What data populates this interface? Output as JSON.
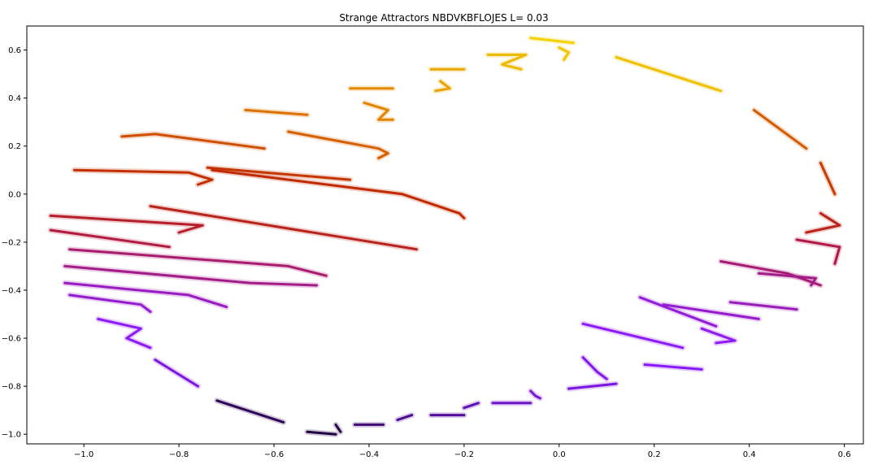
{
  "chart_data": {
    "type": "scatter",
    "title": "Strange Attractors     NBDVKBFLOJES    L= 0.03",
    "xlabel": "",
    "ylabel": "",
    "xlim": [
      -1.12,
      0.64
    ],
    "ylim": [
      -1.04,
      0.7
    ],
    "xticks": [
      -1.0,
      -0.8,
      -0.6,
      -0.4,
      -0.2,
      0.0,
      0.2,
      0.4,
      0.6
    ],
    "xtick_labels": [
      "−1.0",
      "−0.8",
      "−0.6",
      "−0.4",
      "−0.2",
      "0.0",
      "0.2",
      "0.4",
      "0.6"
    ],
    "yticks": [
      0.6,
      0.4,
      0.2,
      0.0,
      -0.2,
      -0.4,
      -0.6,
      -0.8,
      -1.0
    ],
    "ytick_labels": [
      "0.6",
      "0.4",
      "0.2",
      "0.0",
      "−0.2",
      "−0.4",
      "−0.6",
      "−0.8",
      "−1.0"
    ],
    "grid": false,
    "colormap": "gnuplot",
    "colors": {
      "low": "#1a0033",
      "mid_purple": "#8c1aff",
      "magenta": "#b0185a",
      "red": "#c02a00",
      "orange": "#e07800",
      "yellow": "#f2d000"
    },
    "strokes": [
      {
        "x": [
          -0.06,
          0.03
        ],
        "y": [
          0.65,
          0.63
        ],
        "c": 1.0
      },
      {
        "x": [
          0.0,
          0.02,
          0.01
        ],
        "y": [
          0.61,
          0.59,
          0.56
        ],
        "c": 0.98
      },
      {
        "x": [
          -0.15,
          -0.07,
          -0.12,
          -0.08
        ],
        "y": [
          0.58,
          0.58,
          0.54,
          0.52
        ],
        "c": 0.96
      },
      {
        "x": [
          -0.27,
          -0.2
        ],
        "y": [
          0.52,
          0.52
        ],
        "c": 0.93
      },
      {
        "x": [
          -0.25,
          -0.23,
          -0.26
        ],
        "y": [
          0.47,
          0.44,
          0.43
        ],
        "c": 0.92
      },
      {
        "x": [
          0.12,
          0.34
        ],
        "y": [
          0.57,
          0.43
        ],
        "c": 0.97
      },
      {
        "x": [
          -0.44,
          -0.35
        ],
        "y": [
          0.44,
          0.44
        ],
        "c": 0.88
      },
      {
        "x": [
          -0.41,
          -0.36,
          -0.38,
          -0.35
        ],
        "y": [
          0.38,
          0.35,
          0.31,
          0.31
        ],
        "c": 0.87
      },
      {
        "x": [
          -0.66,
          -0.53
        ],
        "y": [
          0.35,
          0.33
        ],
        "c": 0.84
      },
      {
        "x": [
          -0.57,
          -0.38,
          -0.36,
          -0.38
        ],
        "y": [
          0.26,
          0.19,
          0.17,
          0.15
        ],
        "c": 0.81
      },
      {
        "x": [
          -0.92,
          -0.85,
          -0.62
        ],
        "y": [
          0.24,
          0.25,
          0.19
        ],
        "c": 0.78
      },
      {
        "x": [
          0.41,
          0.52
        ],
        "y": [
          0.35,
          0.19
        ],
        "c": 0.8
      },
      {
        "x": [
          -1.02,
          -0.78,
          -0.73,
          -0.76
        ],
        "y": [
          0.1,
          0.09,
          0.06,
          0.04
        ],
        "c": 0.73
      },
      {
        "x": [
          -0.74,
          -0.44
        ],
        "y": [
          0.11,
          0.06
        ],
        "c": 0.74
      },
      {
        "x": [
          -0.73,
          -0.33,
          -0.21,
          -0.2
        ],
        "y": [
          0.1,
          0.0,
          -0.08,
          -0.1
        ],
        "c": 0.72
      },
      {
        "x": [
          0.55,
          0.58
        ],
        "y": [
          0.13,
          0.0
        ],
        "c": 0.75
      },
      {
        "x": [
          -1.07,
          -0.75,
          -0.8
        ],
        "y": [
          -0.09,
          -0.13,
          -0.16
        ],
        "c": 0.66
      },
      {
        "x": [
          -0.86,
          -0.3
        ],
        "y": [
          -0.05,
          -0.23
        ],
        "c": 0.68
      },
      {
        "x": [
          -1.07,
          -0.82
        ],
        "y": [
          -0.15,
          -0.22
        ],
        "c": 0.63
      },
      {
        "x": [
          0.55,
          0.59,
          0.52
        ],
        "y": [
          -0.08,
          -0.13,
          -0.16
        ],
        "c": 0.68
      },
      {
        "x": [
          0.5,
          0.59,
          0.58
        ],
        "y": [
          -0.19,
          -0.22,
          -0.29
        ],
        "c": 0.62
      },
      {
        "x": [
          -1.03,
          -0.57,
          -0.49
        ],
        "y": [
          -0.23,
          -0.3,
          -0.34
        ],
        "c": 0.56
      },
      {
        "x": [
          -1.04,
          -0.65,
          -0.51
        ],
        "y": [
          -0.3,
          -0.37,
          -0.38
        ],
        "c": 0.52
      },
      {
        "x": [
          0.34,
          0.48,
          0.55
        ],
        "y": [
          -0.28,
          -0.33,
          -0.38
        ],
        "c": 0.55
      },
      {
        "x": [
          0.42,
          0.54,
          0.53
        ],
        "y": [
          -0.33,
          -0.35,
          -0.38
        ],
        "c": 0.52
      },
      {
        "x": [
          -1.04,
          -0.78,
          -0.7
        ],
        "y": [
          -0.37,
          -0.42,
          -0.47
        ],
        "c": 0.44
      },
      {
        "x": [
          -1.03,
          -0.88,
          -0.86
        ],
        "y": [
          -0.42,
          -0.46,
          -0.49
        ],
        "c": 0.42
      },
      {
        "x": [
          0.36,
          0.5
        ],
        "y": [
          -0.45,
          -0.48
        ],
        "c": 0.45
      },
      {
        "x": [
          0.17,
          0.33
        ],
        "y": [
          -0.43,
          -0.55
        ],
        "c": 0.4
      },
      {
        "x": [
          0.22,
          0.42
        ],
        "y": [
          -0.46,
          -0.52
        ],
        "c": 0.42
      },
      {
        "x": [
          -0.97,
          -0.88,
          -0.91,
          -0.86
        ],
        "y": [
          -0.52,
          -0.56,
          -0.6,
          -0.64
        ],
        "c": 0.36
      },
      {
        "x": [
          0.05,
          0.26
        ],
        "y": [
          -0.54,
          -0.64
        ],
        "c": 0.36
      },
      {
        "x": [
          0.3,
          0.37,
          0.33
        ],
        "y": [
          -0.56,
          -0.61,
          -0.62
        ],
        "c": 0.37
      },
      {
        "x": [
          0.18,
          0.3
        ],
        "y": [
          -0.71,
          -0.73
        ],
        "c": 0.33
      },
      {
        "x": [
          0.05,
          0.08,
          0.1
        ],
        "y": [
          -0.68,
          -0.74,
          -0.77
        ],
        "c": 0.3
      },
      {
        "x": [
          -0.85,
          -0.76
        ],
        "y": [
          -0.69,
          -0.8
        ],
        "c": 0.27
      },
      {
        "x": [
          0.02,
          0.12
        ],
        "y": [
          -0.81,
          -0.79
        ],
        "c": 0.26
      },
      {
        "x": [
          -0.06,
          -0.05,
          -0.04
        ],
        "y": [
          -0.82,
          -0.84,
          -0.85
        ],
        "c": 0.24
      },
      {
        "x": [
          -0.14,
          -0.06
        ],
        "y": [
          -0.87,
          -0.87
        ],
        "c": 0.2
      },
      {
        "x": [
          -0.2,
          -0.17
        ],
        "y": [
          -0.89,
          -0.87
        ],
        "c": 0.17
      },
      {
        "x": [
          -0.27,
          -0.2
        ],
        "y": [
          -0.92,
          -0.92
        ],
        "c": 0.14
      },
      {
        "x": [
          -0.34,
          -0.31
        ],
        "y": [
          -0.94,
          -0.92
        ],
        "c": 0.12
      },
      {
        "x": [
          -0.43,
          -0.37
        ],
        "y": [
          -0.96,
          -0.96
        ],
        "c": 0.09
      },
      {
        "x": [
          -0.72,
          -0.58
        ],
        "y": [
          -0.86,
          -0.95
        ],
        "c": 0.05
      },
      {
        "x": [
          -0.53,
          -0.47
        ],
        "y": [
          -0.99,
          -1.0
        ],
        "c": 0.02
      },
      {
        "x": [
          -0.47,
          -0.46
        ],
        "y": [
          -0.96,
          -0.99
        ],
        "c": 0.03
      }
    ]
  }
}
